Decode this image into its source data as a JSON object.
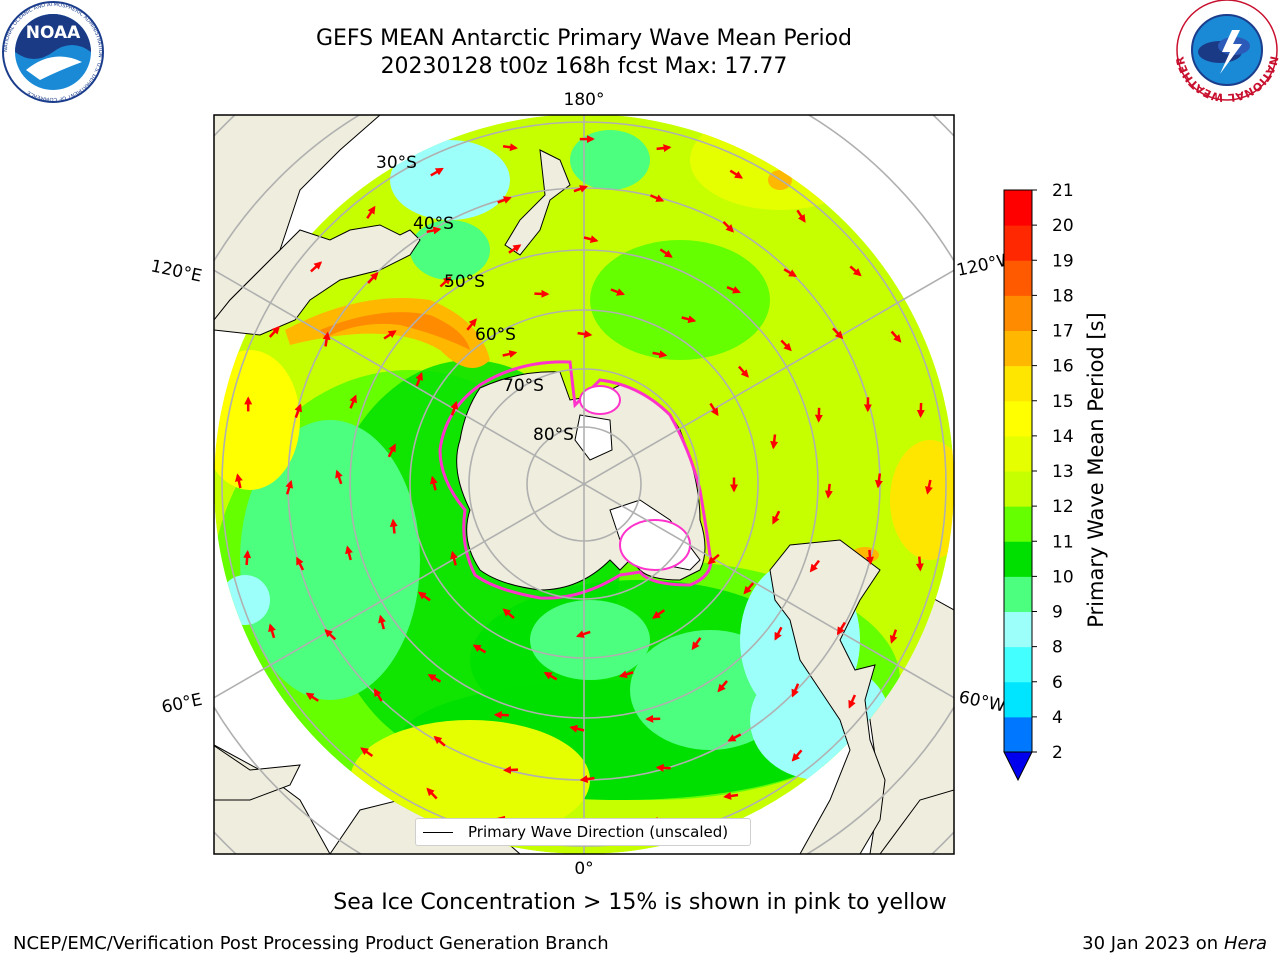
{
  "title": {
    "line1": "GEFS MEAN Antarctic Primary Wave Mean Period",
    "line2": "20230128 t00z 168h fcst   Max: 17.77"
  },
  "logos": {
    "left": {
      "text": "NOAA",
      "ring_text": "NATIONAL OCEANIC AND ATMOSPHERIC ADMINISTRATION · U.S. DEPARTMENT OF COMMERCE"
    },
    "right": {
      "ring_text": "NATIONAL WEATHER SERVICE"
    }
  },
  "map": {
    "projection": "south-polar-stereographic",
    "longitude_labels": {
      "top": "180°",
      "bottom": "0°",
      "left_upper": "120°E",
      "right_upper": "120°W",
      "left_lower": "60°E",
      "right_lower": "60°W"
    },
    "latitude_labels": [
      "30°S",
      "40°S",
      "50°S",
      "60°S",
      "70°S",
      "80°S"
    ],
    "legend_label": "Primary Wave Direction (unscaled)",
    "arrow_color": "#ff0000",
    "land_color": "#efeddd",
    "ice_edge_color": "#ff33cc"
  },
  "colorbar": {
    "title": "Primary Wave Mean Period [s]",
    "ticks": [
      "2",
      "4",
      "6",
      "8",
      "9",
      "10",
      "11",
      "12",
      "13",
      "14",
      "15",
      "16",
      "17",
      "18",
      "19",
      "20",
      "21"
    ],
    "colors": [
      "#0077ff",
      "#00e5ff",
      "#44ffff",
      "#9dfffa",
      "#4cff7e",
      "#00e000",
      "#66ff00",
      "#c6ff00",
      "#e5ff00",
      "#ffff00",
      "#ffe600",
      "#ffb700",
      "#ff8c00",
      "#ff5a00",
      "#ff2800",
      "#ff0000"
    ],
    "under_color": "#0000ee",
    "vmin": 2,
    "vmax": 21
  },
  "caption": "Sea Ice Concentration > 15% is shown in pink to yellow",
  "credits": {
    "left": "NCEP/EMC/Verification Post Processing Product Generation Branch",
    "right_date": "30 Jan 2023 on ",
    "right_host": "Hera"
  }
}
